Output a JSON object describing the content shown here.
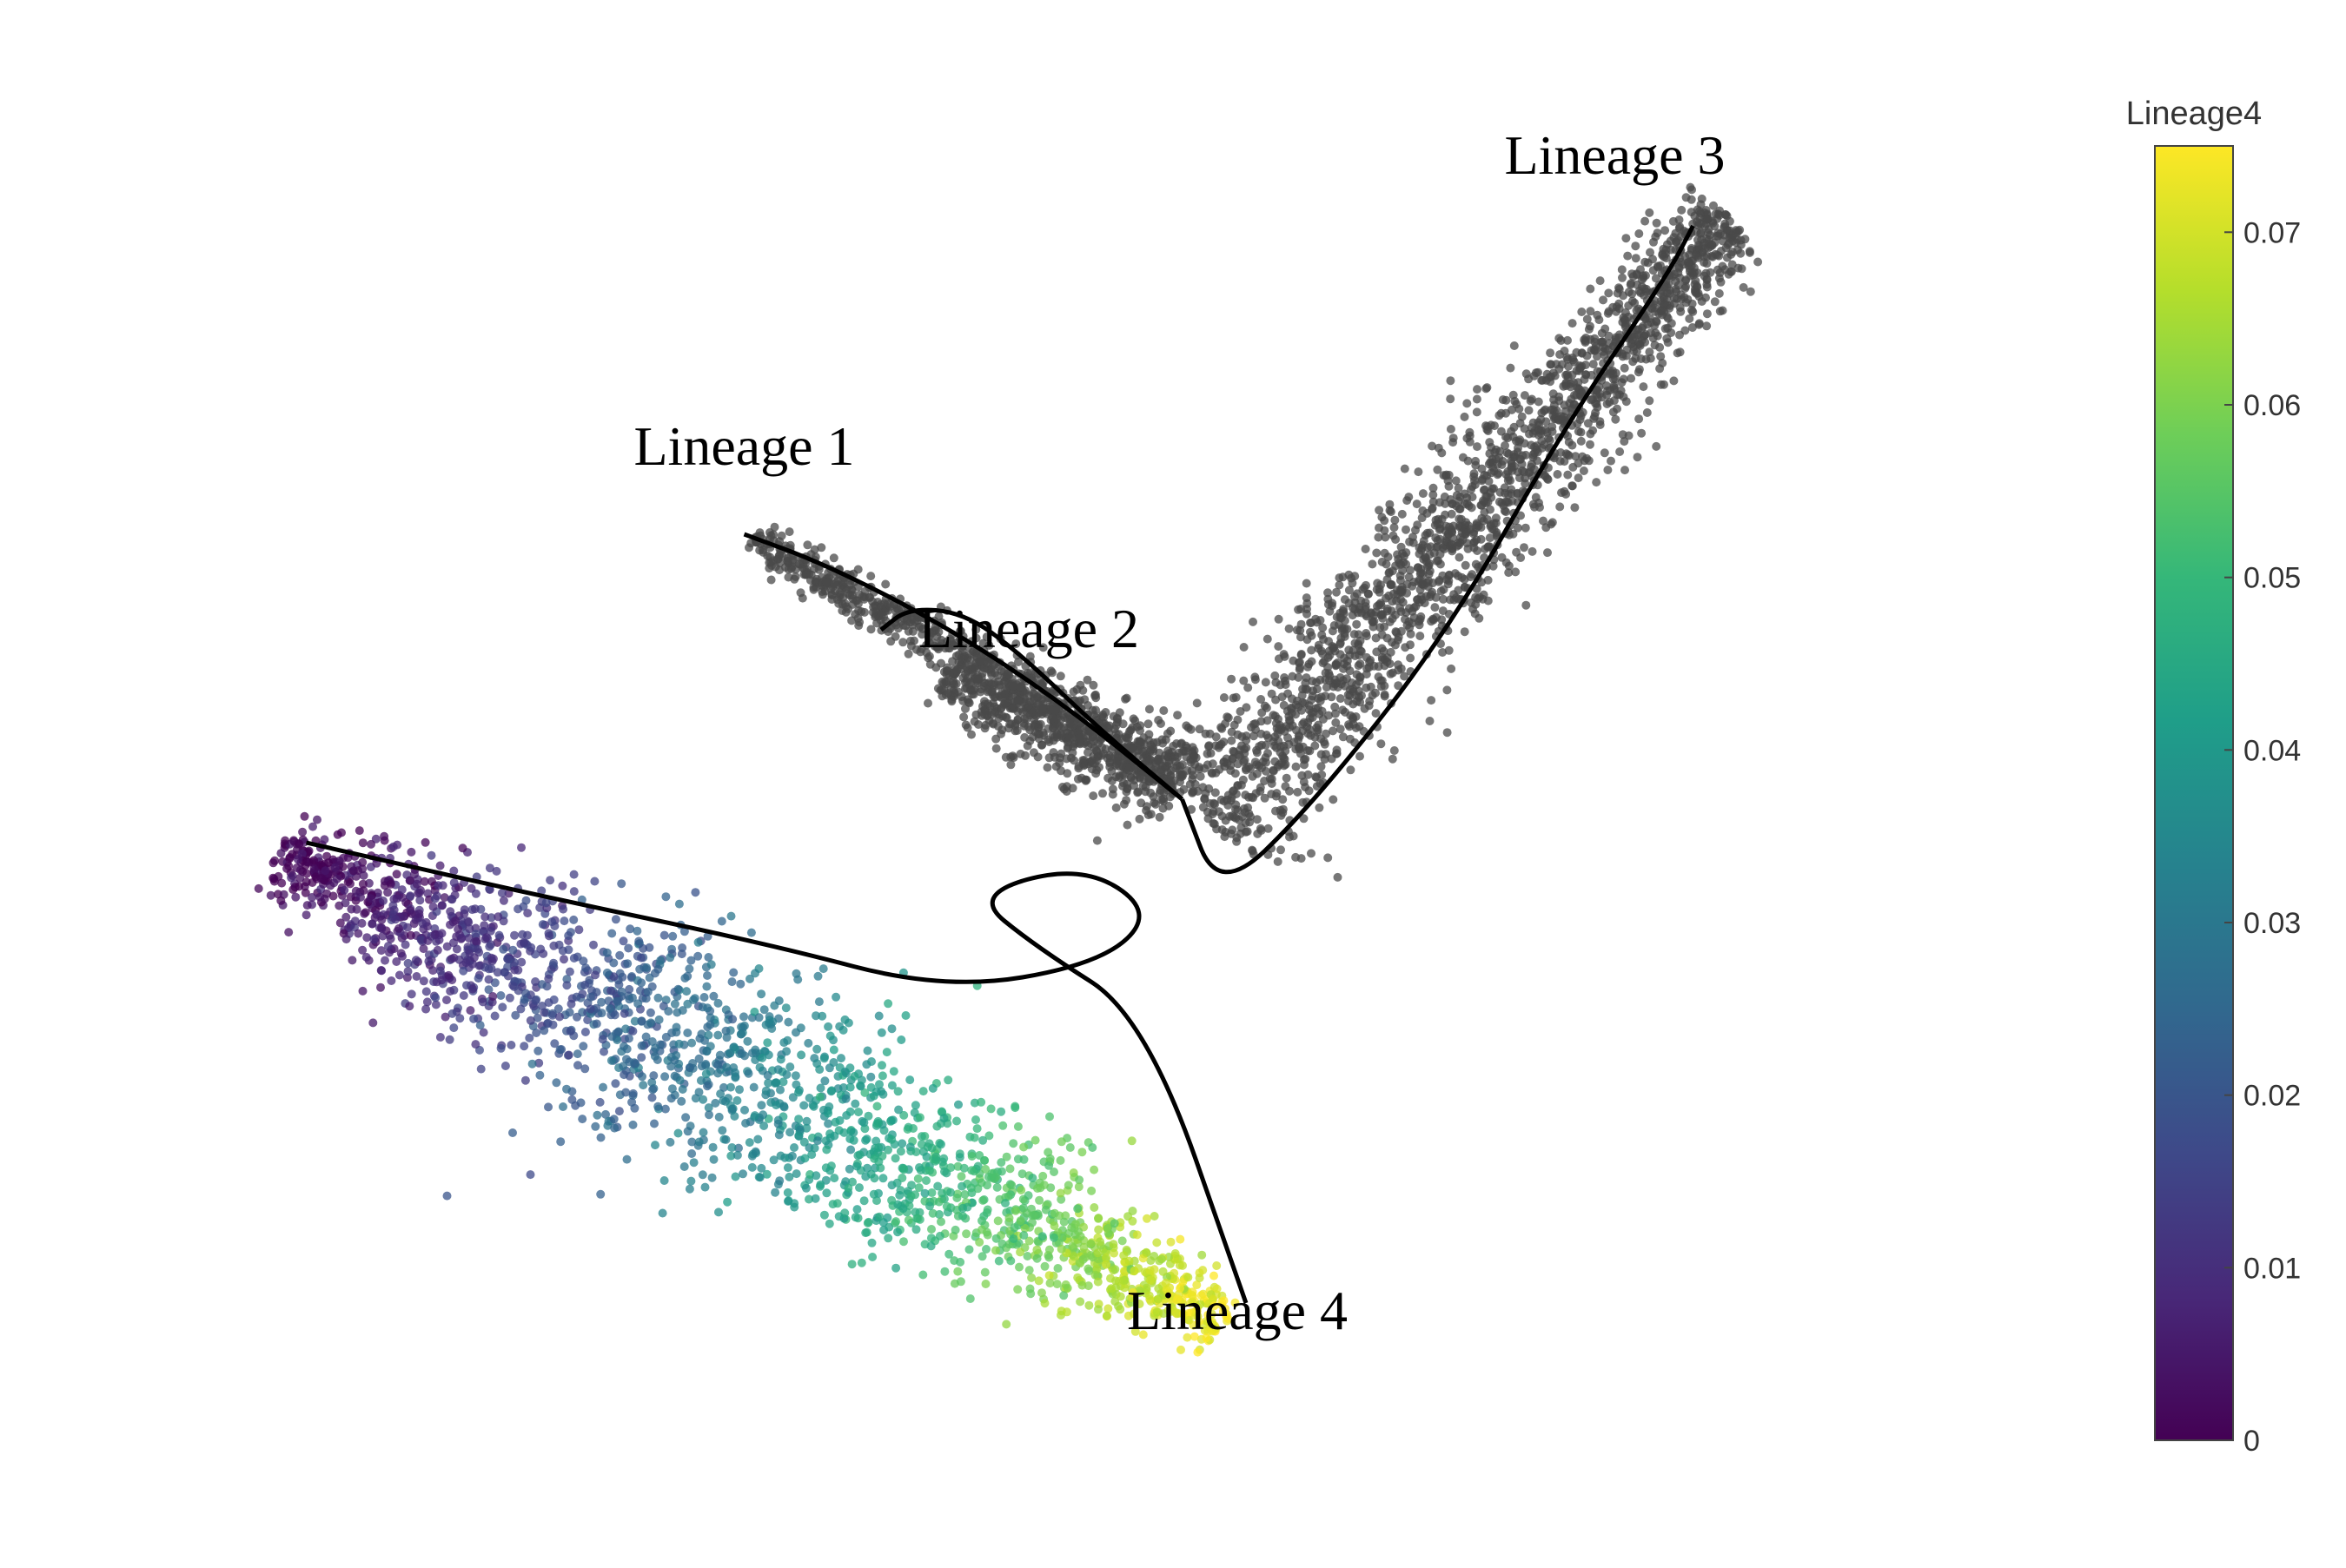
{
  "chart_data": {
    "type": "scatter",
    "title": "",
    "xlabel": "",
    "ylabel": "",
    "grid": false,
    "axes_visible": false,
    "xlim": [
      -10,
      10
    ],
    "ylim": [
      -8,
      8
    ],
    "colorbar": {
      "title": "Lineage4",
      "range": [
        0,
        0.075
      ],
      "ticks": [
        0,
        0.01,
        0.02,
        0.03,
        0.04,
        0.05,
        0.06,
        0.07
      ],
      "tick_labels": [
        "0",
        "0.01",
        "0.02",
        "0.03",
        "0.04",
        "0.05",
        "0.06",
        "0.07"
      ],
      "colormap": "viridis",
      "stops": [
        "#440154",
        "#482878",
        "#3e4989",
        "#31688e",
        "#26828e",
        "#1f9e89",
        "#35b779",
        "#6ece58",
        "#b5de2b",
        "#fde725"
      ],
      "placement": "right"
    },
    "na_color": "#4a4a4a",
    "curve_color": "#000000",
    "lineages": [
      {
        "name": "Lineage 1",
        "label": "Lineage 1",
        "curve": [
          [
            0.1,
            0.3
          ],
          [
            -1.2,
            1.4
          ],
          [
            -2.5,
            2.3
          ],
          [
            -3.8,
            3.0
          ],
          [
            -4.7,
            3.35
          ]
        ]
      },
      {
        "name": "Lineage 2",
        "label": "Lineage 2",
        "curve": [
          [
            0.1,
            0.3
          ],
          [
            -0.8,
            1.1
          ],
          [
            -1.7,
            2.0
          ],
          [
            -2.3,
            2.45
          ],
          [
            -2.9,
            2.5
          ],
          [
            -3.2,
            2.25
          ]
        ]
      },
      {
        "name": "Lineage 3",
        "label": "Lineage 3",
        "curve": [
          [
            0.1,
            0.3
          ],
          [
            0.5,
            -0.8
          ],
          [
            1.5,
            0.2
          ],
          [
            3.0,
            2.2
          ],
          [
            4.3,
            4.6
          ],
          [
            5.4,
            6.3
          ],
          [
            5.7,
            6.9
          ]
        ]
      },
      {
        "name": "Lineage 4",
        "label": "Lineage 4",
        "curve": [
          [
            -9.5,
            -0.2
          ],
          [
            -7.0,
            -0.8
          ],
          [
            -4.5,
            -1.35
          ],
          [
            -2.5,
            -1.9
          ],
          [
            -0.8,
            -1.6
          ],
          [
            -0.2,
            -1.0
          ],
          [
            -1.0,
            -0.45
          ],
          [
            -2.2,
            -0.8
          ],
          [
            -1.5,
            -1.4
          ],
          [
            -0.3,
            -2.2
          ],
          [
            0.8,
            -5.5
          ]
        ]
      }
    ],
    "point_groups": [
      {
        "name": "Lineage 1",
        "lineage4_value": null,
        "count": 700,
        "path": [
          [
            0.1,
            0.5
          ],
          [
            -4.6,
            3.3
          ]
        ],
        "spread": 0.35
      },
      {
        "name": "Lineage 2",
        "lineage4_value": null,
        "count": 600,
        "path": [
          [
            0.1,
            0.5
          ],
          [
            -2.5,
            1.8
          ]
        ],
        "spread": 0.7
      },
      {
        "name": "Lineage 3",
        "lineage4_value": null,
        "count": 2000,
        "path": [
          [
            0.4,
            0.0
          ],
          [
            6.1,
            7.0
          ]
        ],
        "spread": 0.9
      },
      {
        "name": "Lineage 4",
        "lineage4_value": [
          0.0,
          0.075
        ],
        "count": 2200,
        "path": [
          [
            -9.8,
            -0.3
          ],
          [
            0.6,
            -5.7
          ]
        ],
        "spread": 1.1
      }
    ]
  }
}
